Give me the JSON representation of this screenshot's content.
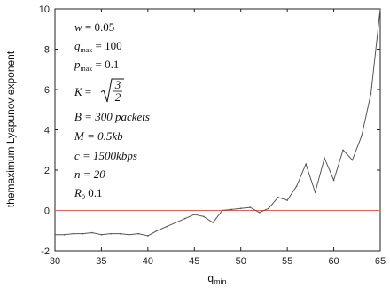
{
  "chart_data": {
    "type": "line",
    "title": "",
    "xlabel": "q",
    "xlabel_sub": "min",
    "ylabel": "themaximum Lyapunov exponent",
    "xlim": [
      30,
      65
    ],
    "ylim": [
      -2,
      10
    ],
    "xticks": [
      30,
      35,
      40,
      45,
      50,
      55,
      60,
      65
    ],
    "yticks": [
      -2,
      0,
      2,
      4,
      6,
      8,
      10
    ],
    "grid": false,
    "reference_line": {
      "y": 0,
      "color": "#e06060"
    },
    "series": [
      {
        "color": "#555555",
        "x": [
          30,
          31,
          32,
          33,
          34,
          35,
          36,
          37,
          38,
          39,
          40,
          41,
          42,
          43,
          44,
          45,
          46,
          47,
          48,
          49,
          50,
          51,
          52,
          53,
          54,
          55,
          56,
          57,
          58,
          59,
          60,
          61,
          62,
          63,
          64,
          65
        ],
        "y": [
          -1.2,
          -1.2,
          -1.15,
          -1.15,
          -1.1,
          -1.2,
          -1.15,
          -1.15,
          -1.2,
          -1.15,
          -1.25,
          -1.0,
          -0.8,
          -0.6,
          -0.4,
          -0.2,
          -0.3,
          -0.6,
          0.0,
          0.05,
          0.1,
          0.15,
          -0.1,
          0.1,
          0.65,
          0.5,
          1.2,
          2.3,
          0.9,
          2.6,
          1.5,
          3.0,
          2.5,
          3.7,
          5.8,
          10.0
        ]
      }
    ],
    "annotations": [
      "w = 0.05",
      "q_max = 100",
      "p_max = 0.1",
      "K = √(3/2)",
      "B = 300 packets",
      "M = 0.5kb",
      "c = 1500kbps",
      "n = 20",
      "R_0 0.1"
    ]
  },
  "params": {
    "w_sym": "w",
    "w_val": " = 0.05",
    "q_sym": "q",
    "q_sub": "max",
    "q_val": " = 100",
    "p_sym": "p",
    "p_sub": "max",
    "p_val": " = 0.1",
    "k_sym": "K",
    "k_eq": " = ",
    "k_num": "3",
    "k_den": "2",
    "b_text": "B = 300 packets",
    "m_text": "M = 0.5kb",
    "c_text": "c = 1500kbps",
    "n_text": "n = 20",
    "r_sym": "R",
    "r_sub": "0",
    "r_val": " 0.1"
  }
}
